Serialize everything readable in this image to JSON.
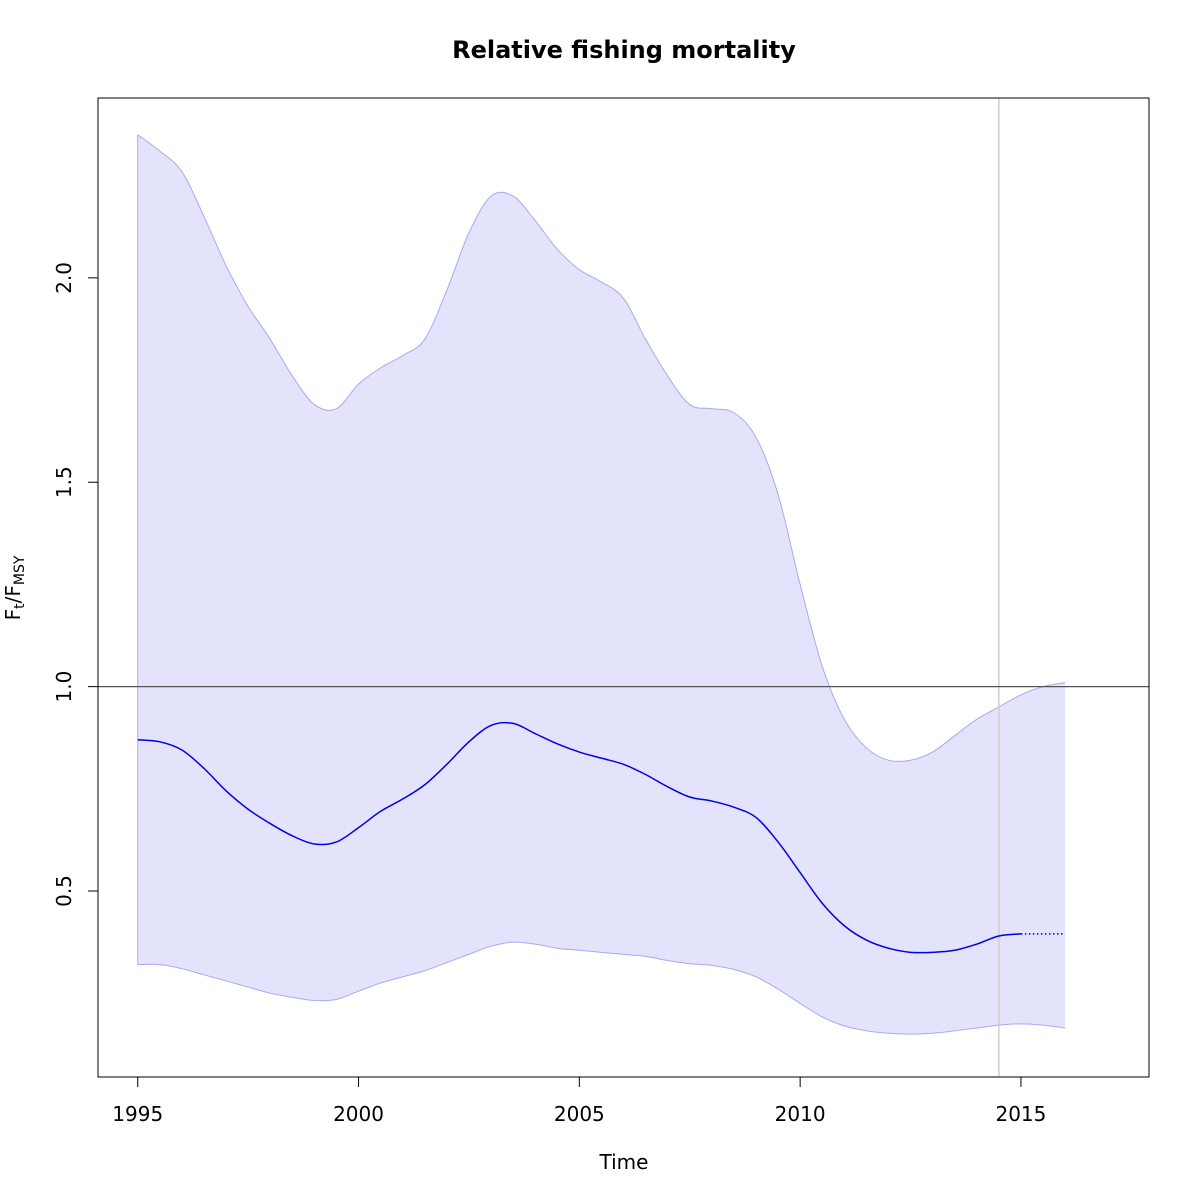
{
  "chart_data": {
    "type": "line",
    "title": "Relative fishing mortality",
    "xlabel": "Time",
    "ylabel": {
      "base": "F",
      "sub1": "t",
      "sep": "/",
      "base2": "F",
      "sub2": "MSY"
    },
    "xlim": [
      1994.1,
      2017.9
    ],
    "ylim": [
      0.045,
      2.44
    ],
    "x_ticks": [
      1995,
      2000,
      2005,
      2010,
      2015
    ],
    "x_tick_labels": [
      "1995",
      "2000",
      "2005",
      "2010",
      "2015"
    ],
    "y_ticks": [
      0.5,
      1.0,
      1.5,
      2.0
    ],
    "y_tick_labels": [
      "0.5",
      "1.0",
      "1.5",
      "2.0"
    ],
    "grid": false,
    "legend": "none",
    "reference_line_y": 1.0,
    "vertical_line_x": 2014.5,
    "colors": {
      "line": "#0000ee",
      "band_fill": "#e3e3fb",
      "band_edge": "#a9a9f0",
      "reference_line": "#555555",
      "vertical_line": "#cfcfcf",
      "axis": "#000000"
    },
    "series": [
      {
        "role": "estimate",
        "style": "solid",
        "x": [
          1995,
          1995.5,
          1996,
          1996.5,
          1997,
          1997.5,
          1998,
          1998.5,
          1999,
          1999.5,
          2000,
          2000.5,
          2001,
          2001.5,
          2002,
          2002.5,
          2003,
          2003.5,
          2004,
          2004.5,
          2005,
          2005.5,
          2006,
          2006.5,
          2007,
          2007.5,
          2008,
          2008.5,
          2009,
          2009.5,
          2010,
          2010.5,
          2011,
          2011.5,
          2012,
          2012.5,
          2013,
          2013.5,
          2014,
          2014.5,
          2015
        ],
        "y": [
          0.87,
          0.865,
          0.845,
          0.8,
          0.745,
          0.7,
          0.665,
          0.635,
          0.615,
          0.62,
          0.655,
          0.695,
          0.725,
          0.76,
          0.81,
          0.865,
          0.905,
          0.91,
          0.885,
          0.86,
          0.84,
          0.825,
          0.81,
          0.785,
          0.755,
          0.73,
          0.72,
          0.705,
          0.68,
          0.62,
          0.545,
          0.47,
          0.415,
          0.38,
          0.36,
          0.35,
          0.35,
          0.355,
          0.37,
          0.39,
          0.395
        ]
      },
      {
        "role": "projection",
        "style": "dotted",
        "x": [
          2015,
          2016
        ],
        "y": [
          0.395,
          0.395
        ]
      }
    ],
    "band": {
      "x": [
        1995,
        1995.5,
        1996,
        1996.5,
        1997,
        1997.5,
        1998,
        1998.5,
        1999,
        1999.5,
        2000,
        2000.5,
        2001,
        2001.5,
        2002,
        2002.5,
        2003,
        2003.5,
        2004,
        2004.5,
        2005,
        2005.5,
        2006,
        2006.5,
        2007,
        2007.5,
        2008,
        2008.5,
        2009,
        2009.5,
        2010,
        2010.5,
        2011,
        2011.5,
        2012,
        2012.5,
        2013,
        2013.5,
        2014,
        2014.5,
        2015,
        2015.5,
        2016
      ],
      "upper": [
        2.35,
        2.31,
        2.26,
        2.15,
        2.03,
        1.93,
        1.85,
        1.76,
        1.69,
        1.68,
        1.74,
        1.78,
        1.81,
        1.85,
        1.97,
        2.11,
        2.2,
        2.2,
        2.14,
        2.07,
        2.02,
        1.99,
        1.95,
        1.85,
        1.76,
        1.69,
        1.68,
        1.67,
        1.61,
        1.47,
        1.25,
        1.05,
        0.92,
        0.85,
        0.82,
        0.82,
        0.84,
        0.88,
        0.92,
        0.95,
        0.98,
        1.0,
        1.01
      ],
      "lower": [
        0.32,
        0.32,
        0.31,
        0.295,
        0.28,
        0.265,
        0.25,
        0.24,
        0.232,
        0.235,
        0.255,
        0.275,
        0.29,
        0.305,
        0.325,
        0.345,
        0.365,
        0.375,
        0.37,
        0.36,
        0.355,
        0.35,
        0.345,
        0.34,
        0.33,
        0.322,
        0.318,
        0.308,
        0.29,
        0.26,
        0.225,
        0.192,
        0.17,
        0.158,
        0.152,
        0.15,
        0.152,
        0.158,
        0.165,
        0.172,
        0.175,
        0.172,
        0.165
      ]
    }
  }
}
